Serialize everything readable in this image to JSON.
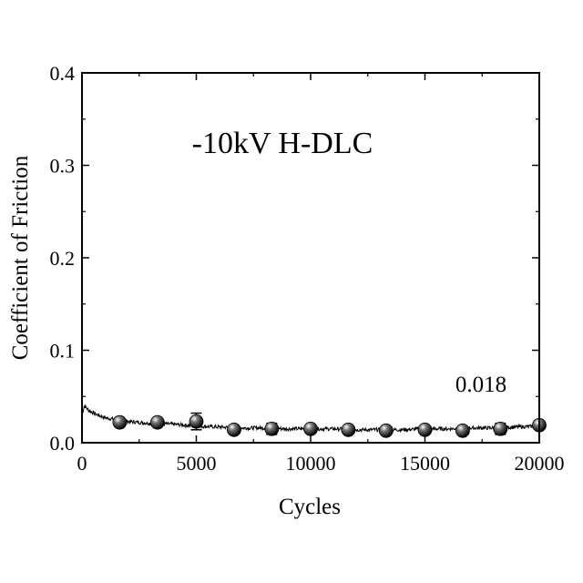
{
  "chart_data": {
    "type": "scatter",
    "title": "",
    "annotation": "-10kV H-DLC",
    "value_label": "0.018",
    "xlabel": "Cycles",
    "ylabel": "Coefficient of Friction",
    "xlim": [
      0,
      20000
    ],
    "ylim": [
      0,
      0.4
    ],
    "x_ticks": [
      "0",
      "5000",
      "10000",
      "15000",
      "20000"
    ],
    "y_ticks": [
      "0.0",
      "0.1",
      "0.2",
      "0.3",
      "0.4"
    ],
    "x_tick_values": [
      0,
      5000,
      10000,
      15000,
      20000
    ],
    "y_tick_values": [
      0,
      0.1,
      0.2,
      0.3,
      0.4
    ],
    "grid": false,
    "series": [
      {
        "type": "line",
        "x": [
          0,
          100,
          300,
          600,
          1000,
          1500,
          2000,
          2500,
          3000,
          4000,
          5000,
          6000,
          7000,
          8000,
          9000,
          10000,
          11000,
          12000,
          13000,
          14000,
          15000,
          16000,
          17000,
          18000,
          19000,
          20000
        ],
        "y": [
          0.03,
          0.04,
          0.035,
          0.031,
          0.027,
          0.025,
          0.023,
          0.022,
          0.021,
          0.02,
          0.018,
          0.017,
          0.016,
          0.016,
          0.015,
          0.015,
          0.015,
          0.014,
          0.014,
          0.014,
          0.015,
          0.015,
          0.016,
          0.016,
          0.017,
          0.018
        ]
      },
      {
        "type": "scatter",
        "x": [
          1650,
          3300,
          5000,
          6650,
          8300,
          10000,
          11650,
          13300,
          15000,
          16650,
          18300,
          20000
        ],
        "y": [
          0.022,
          0.022,
          0.023,
          0.014,
          0.015,
          0.015,
          0.014,
          0.013,
          0.014,
          0.013,
          0.015,
          0.019
        ],
        "error": [
          0.003,
          0.003,
          0.009,
          0.003,
          0.006,
          0.003,
          0.003,
          0.003,
          0.004,
          0.003,
          0.006,
          0.003
        ]
      }
    ]
  }
}
